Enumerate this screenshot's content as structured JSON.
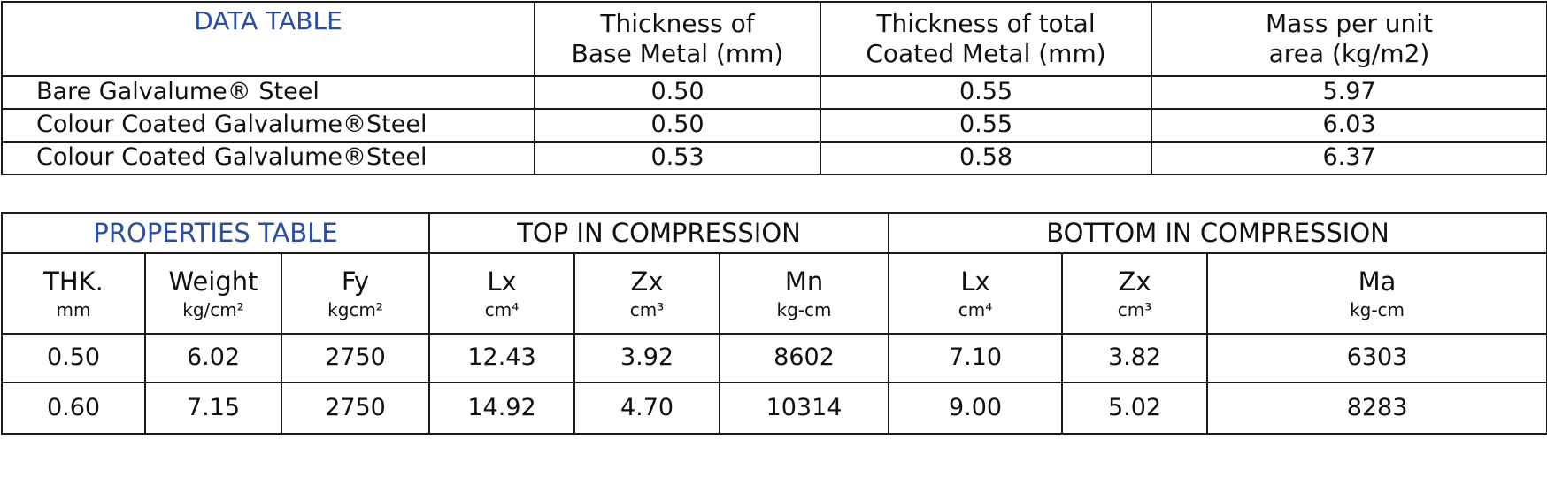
{
  "data_table": {
    "title": "DATA TABLE",
    "headers": [
      "Thickness of\nBase Metal (mm)",
      "Thickness of total\nCoated Metal (mm)",
      "Mass per unit\narea (kg/m2)"
    ],
    "rows": [
      [
        "Bare Galvalume® Steel",
        "0.50",
        "0.55",
        "5.97"
      ],
      [
        "Colour Coated Galvalume®Steel",
        "0.50",
        "0.55",
        "6.03"
      ],
      [
        "Colour Coated Galvalume®Steel",
        "0.53",
        "0.58",
        "6.37"
      ]
    ]
  },
  "properties_table": {
    "title": "PROPERTIES TABLE",
    "groups": [
      "TOP IN COMPRESSION",
      "BOTTOM IN COMPRESSION"
    ],
    "columns": [
      {
        "name": "THK.",
        "unit": "mm"
      },
      {
        "name": "Weight",
        "unit": "kg/cm²"
      },
      {
        "name": "Fy",
        "unit": "kgcm²"
      },
      {
        "name": "Lx",
        "unit": "cm⁴"
      },
      {
        "name": "Zx",
        "unit": "cm³"
      },
      {
        "name": "Mn",
        "unit": "kg-cm"
      },
      {
        "name": "Lx",
        "unit": "cm⁴"
      },
      {
        "name": "Zx",
        "unit": "cm³"
      },
      {
        "name": "Ma",
        "unit": "kg-cm"
      }
    ],
    "rows": [
      [
        "0.50",
        "6.02",
        "2750",
        "12.43",
        "3.92",
        "8602",
        "7.10",
        "3.82",
        "6303"
      ],
      [
        "0.60",
        "7.15",
        "2750",
        "14.92",
        "4.70",
        "10314",
        "9.00",
        "5.02",
        "8283"
      ]
    ]
  }
}
